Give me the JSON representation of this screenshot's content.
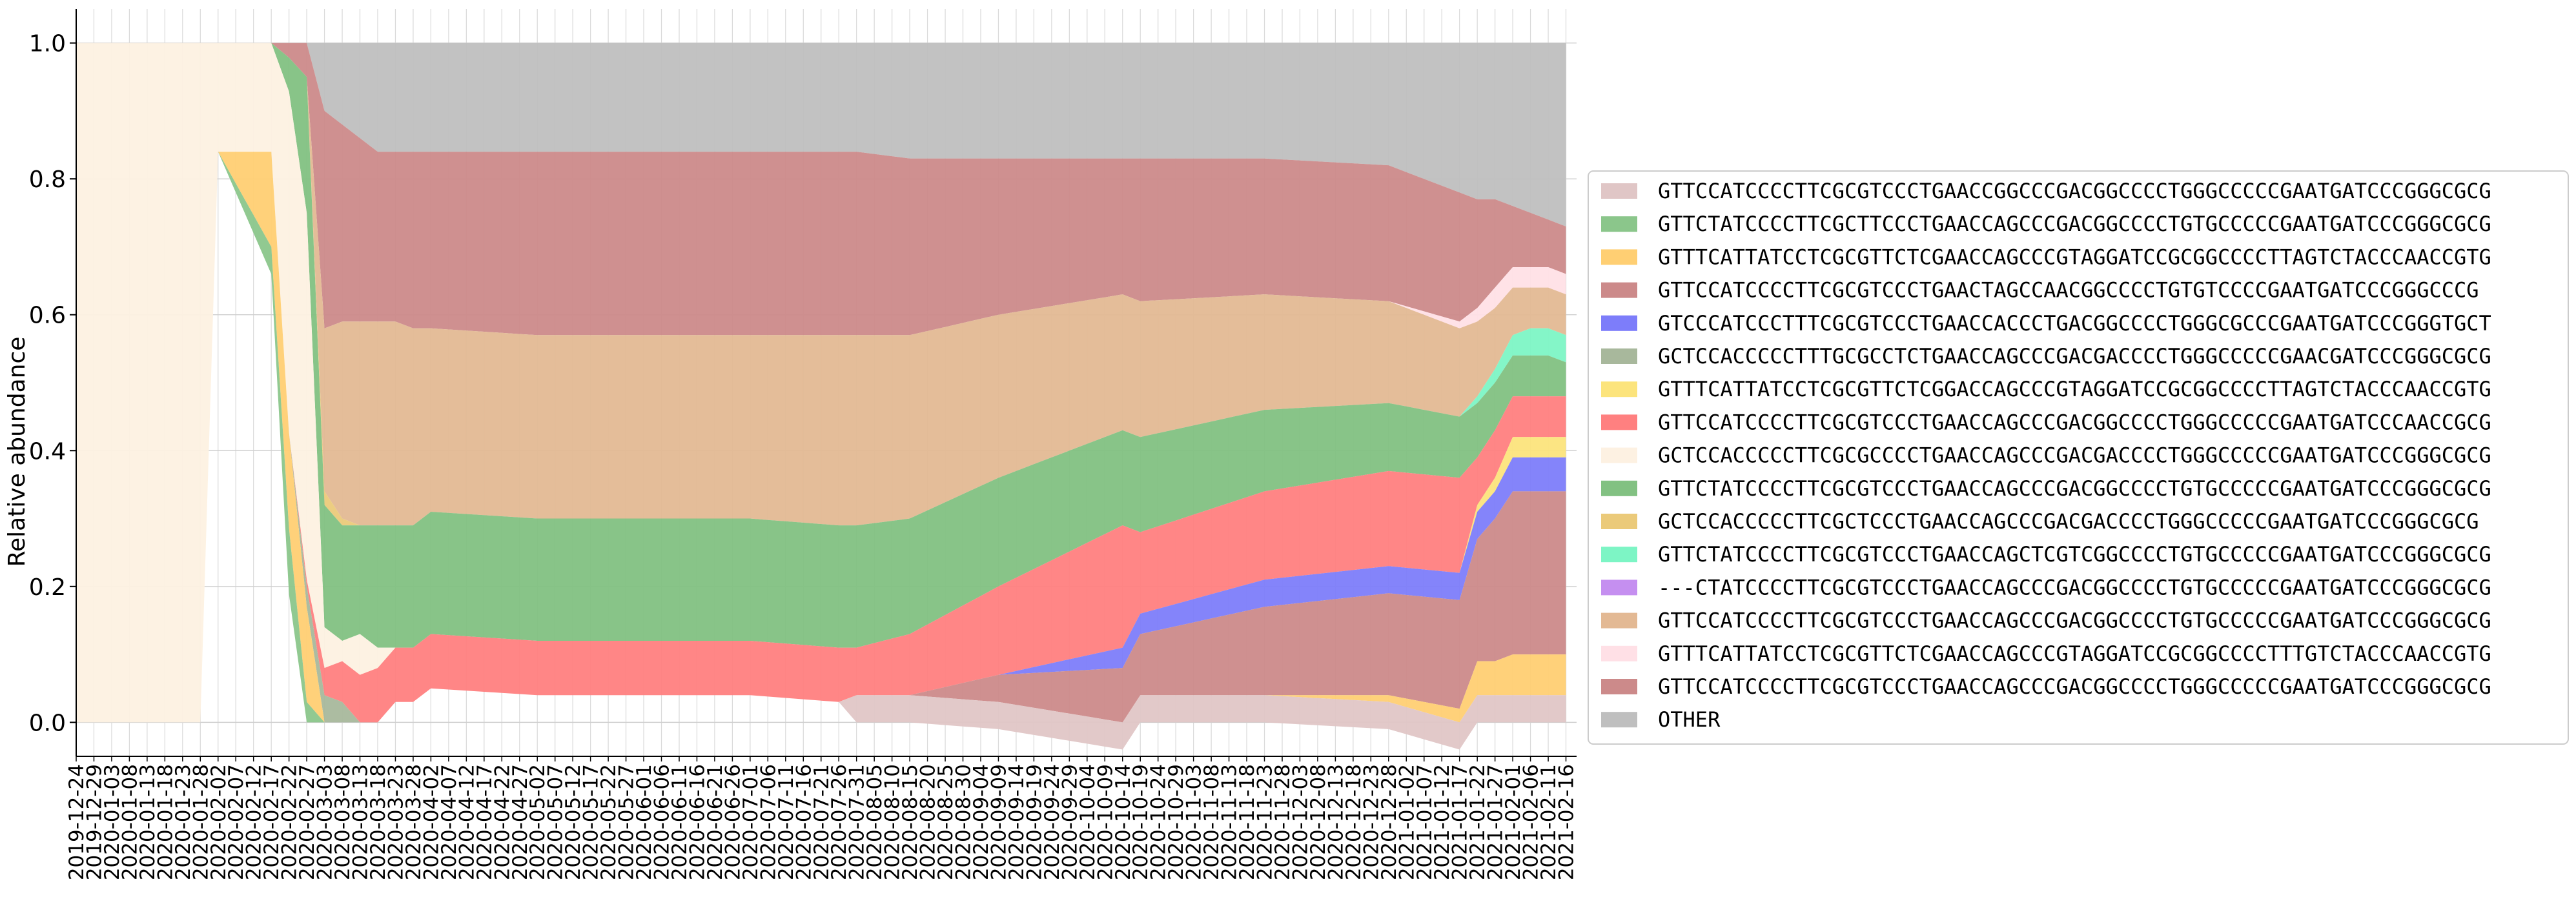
{
  "chart_data": {
    "type": "area",
    "stacked": true,
    "title": "",
    "xlabel": "",
    "ylabel": "Relative abundance",
    "ylim": [
      -0.05,
      1.05
    ],
    "yticks": [
      0.0,
      0.2,
      0.4,
      0.6,
      0.8,
      1.0
    ],
    "ytick_labels": [
      "0.0",
      "0.2",
      "0.4",
      "0.6",
      "0.8",
      "1.0"
    ],
    "x_start": "2019-12-24",
    "x_end": "2021-02-19",
    "x_step_days": 5,
    "grid": true,
    "legend_position": "right",
    "anchor_dates": [
      "2019-12-24",
      "2020-01-28",
      "2020-02-02",
      "2020-02-17",
      "2020-02-24",
      "2020-02-27",
      "2020-03-03",
      "2020-03-08",
      "2020-03-13",
      "2020-03-18",
      "2020-03-23",
      "2020-03-28",
      "2020-04-02",
      "2020-05-02",
      "2020-06-01",
      "2020-07-01",
      "2020-07-26",
      "2020-07-31",
      "2020-08-15",
      "2020-09-09",
      "2020-10-14",
      "2020-10-19",
      "2020-11-23",
      "2020-12-28",
      "2021-01-17",
      "2021-01-22",
      "2021-01-27",
      "2021-02-01",
      "2021-02-06",
      "2021-02-11",
      "2021-02-16",
      "2021-02-19"
    ],
    "series": [
      {
        "name": "OTHER",
        "color": "#bfbfbf",
        "values": [
          0,
          0,
          0,
          0,
          0,
          0,
          0.1,
          0.12,
          0.14,
          0.16,
          0.16,
          0.16,
          0.16,
          0.16,
          0.16,
          0.16,
          0.16,
          0.16,
          0.17,
          0.17,
          0.17,
          0.17,
          0.17,
          0.18,
          0.22,
          0.23,
          0.23,
          0.24,
          0.25,
          0.26,
          0.27,
          0.28
        ]
      },
      {
        "name": "GTTCCATCCCCTTCGCGTCCCTGAACCAGCCCGACGGCCCCTGGGCCCCCGAATGATCCCGGGCGCG",
        "color": "#cc8a8a",
        "values": [
          0,
          0,
          0,
          0,
          0.03,
          0.05,
          0.32,
          0.29,
          0.27,
          0.25,
          0.25,
          0.26,
          0.26,
          0.27,
          0.27,
          0.27,
          0.27,
          0.27,
          0.26,
          0.23,
          0.2,
          0.21,
          0.2,
          0.2,
          0.19,
          0.16,
          0.13,
          0.09,
          0.08,
          0.07,
          0.07,
          0.07
        ]
      },
      {
        "name": "GTTTCATTATCCTCGCGTTCTCGAACCAGCCCGTAGGATCCGCGGCCCCTTTGTCTACCCAACCGTG",
        "color": "#ffe0e6",
        "values": [
          0,
          0,
          0,
          0,
          0,
          0,
          0,
          0,
          0,
          0,
          0,
          0,
          0,
          0,
          0,
          0,
          0,
          0,
          0,
          0,
          0,
          0,
          0,
          0,
          0.01,
          0.02,
          0.03,
          0.03,
          0.03,
          0.03,
          0.03,
          0.03
        ]
      },
      {
        "name": "GTTCCATCCCCTTCGCGTCCCTGAACCAGCCCGACGGCCCCTGTGCCCCCGAATGATCCCGGGCGCG",
        "color": "#e3b994",
        "values": [
          0,
          0,
          0,
          0,
          0,
          0,
          0.24,
          0.29,
          0.3,
          0.3,
          0.3,
          0.29,
          0.27,
          0.27,
          0.27,
          0.27,
          0.28,
          0.28,
          0.27,
          0.24,
          0.2,
          0.2,
          0.17,
          0.15,
          0.13,
          0.11,
          0.09,
          0.07,
          0.06,
          0.06,
          0.06,
          0.06
        ]
      },
      {
        "name": "---CTATCCCCTTCGCGTCCCTGAACCAGCCCGACGGCCCCTGTGCCCCCGAATGATCCCGGGCGCG",
        "color": "#c58ff0",
        "values": [
          0,
          0,
          0,
          0,
          0,
          0,
          0,
          0,
          0,
          0,
          0,
          0,
          0,
          0,
          0,
          0,
          0,
          0,
          0,
          0,
          0,
          0,
          0,
          0,
          0,
          0,
          0,
          0,
          0,
          0,
          0,
          0
        ]
      },
      {
        "name": "GTTCTATCCCCTTCGCGTCCCTGAACCAGCTCGTCGGCCCCTGTGCCCCCGAATGATCCCGGGCGCG",
        "color": "#7df5c5",
        "values": [
          0,
          0,
          0,
          0,
          0,
          0,
          0,
          0,
          0,
          0,
          0,
          0,
          0,
          0,
          0,
          0,
          0,
          0,
          0,
          0,
          0,
          0,
          0,
          0,
          0,
          0.01,
          0.02,
          0.03,
          0.04,
          0.04,
          0.04,
          0.04
        ]
      },
      {
        "name": "GCTCCACCCCCTTCGCTCCCTGAACCAGCCCGACGACCCCTGGGCCCCCGAATGATCCCGGGCGCG",
        "color": "#ebca7a",
        "values": [
          0,
          0,
          0,
          0,
          0,
          0,
          0.02,
          0.01,
          0,
          0,
          0,
          0,
          0,
          0,
          0,
          0,
          0,
          0,
          0,
          0,
          0,
          0,
          0,
          0,
          0,
          0,
          0,
          0,
          0,
          0,
          0,
          0
        ]
      },
      {
        "name": "GTTCTATCCCCTTCGCGTCCCTGAACCAGCCCGACGGCCCCTGTGCCCCCGAATGATCCCGGGCGCG",
        "color": "#82c182",
        "values": [
          0,
          0,
          0,
          0,
          0.07,
          0.2,
          0.18,
          0.17,
          0.16,
          0.18,
          0.18,
          0.18,
          0.18,
          0.18,
          0.18,
          0.18,
          0.18,
          0.18,
          0.17,
          0.16,
          0.14,
          0.14,
          0.12,
          0.1,
          0.09,
          0.08,
          0.07,
          0.06,
          0.06,
          0.06,
          0.05,
          0.05
        ]
      },
      {
        "name": "GCTCCACCCCCTTCGCGCCCCTGAACCAGCCCGACGACCCCTGGGCCCCCGAATGATCCCGGGCGCG",
        "color": "#fdf1e2",
        "values": [
          1.0,
          1.0,
          0.16,
          0.16,
          0.64,
          0.54,
          0.06,
          0.03,
          0.06,
          0.03,
          0,
          0,
          0,
          0,
          0,
          0,
          0,
          0,
          0,
          0,
          0,
          0,
          0,
          0,
          0,
          0,
          0,
          0,
          0,
          0,
          0,
          0
        ]
      },
      {
        "name": "GTTCCATCCCCTTCGCGTCCCTGAACCAGCCCGACGGCCCCTGGGCCCCCGAATGATCCCAACCGCG",
        "color": "#ff8080",
        "values": [
          0,
          0,
          0,
          0,
          0,
          0.01,
          0.04,
          0.06,
          0.07,
          0.08,
          0.08,
          0.08,
          0.08,
          0.08,
          0.08,
          0.08,
          0.08,
          0.07,
          0.09,
          0.13,
          0.18,
          0.12,
          0.13,
          0.14,
          0.14,
          0.07,
          0.07,
          0.06,
          0.06,
          0.06,
          0.06,
          0.06
        ]
      },
      {
        "name": "GTTTCATTATCCTCGCGTTCTCGGACCAGCCCGTAGGATCCGCGGCCCCTTAGTCTACCCAACCGTG",
        "color": "#fce47c",
        "values": [
          0,
          0,
          0,
          0,
          0,
          0,
          0,
          0,
          0,
          0,
          0,
          0,
          0,
          0,
          0,
          0,
          0,
          0,
          0,
          0,
          0,
          0,
          0,
          0,
          0,
          0.01,
          0.02,
          0.03,
          0.03,
          0.03,
          0.03,
          0.03
        ]
      },
      {
        "name": "GCTCCACCCCCTTTGCGCCTCTGAACCAGCCCGACGACCCCTGGGCCCCCGAACGATCCCGGGCGCG",
        "color": "#a8b89c",
        "values": [
          0,
          0,
          0,
          0,
          0,
          0.03,
          0.04,
          0.03,
          0,
          0,
          0,
          0,
          0,
          0,
          0,
          0,
          0,
          0,
          0,
          0,
          0,
          0,
          0,
          0,
          0,
          0,
          0,
          0,
          0,
          0,
          0,
          0
        ]
      },
      {
        "name": "GTCCCATCCCTTTCGCGTCCCTGAACCACCCTGACGGCCCCTGGGCGCCCGAATGATCCCGGGTGCT",
        "color": "#7d7dfa",
        "values": [
          0,
          0,
          0,
          0,
          0,
          0,
          0,
          0,
          0,
          0,
          0,
          0,
          0,
          0,
          0,
          0,
          0,
          0,
          0,
          0,
          0.03,
          0.03,
          0.04,
          0.04,
          0.04,
          0.04,
          0.04,
          0.05,
          0.05,
          0.05,
          0.05,
          0.05
        ]
      },
      {
        "name": "GTTCCATCCCCTTCGCGTCCCTGAACTAGCCAACGGCCCCTGTGTCCCCGAATGATCCCGGGCCCG",
        "color": "#cc8a8a",
        "values": [
          0,
          0,
          0,
          0,
          0,
          0,
          0,
          0,
          0,
          0,
          0,
          0,
          0,
          0,
          0,
          0,
          0,
          0,
          0,
          0.04,
          0.08,
          0.09,
          0.13,
          0.15,
          0.16,
          0.18,
          0.21,
          0.24,
          0.24,
          0.24,
          0.24,
          0.24
        ]
      },
      {
        "name": "GTTTCATTATCCTCGCGTTCTCGAACCAGCCCGTAGGATCCGCGGCCCCTTAGTCTACCCAACCGTG",
        "color": "#ffcf73",
        "values": [
          0,
          0,
          0,
          0.14,
          0.14,
          0.14,
          0,
          0,
          0,
          0,
          0,
          0,
          0,
          0,
          0,
          0,
          0,
          0,
          0,
          0,
          0,
          0,
          0,
          0.01,
          0.02,
          0.05,
          0.05,
          0.06,
          0.06,
          0.06,
          0.06,
          0.06
        ]
      },
      {
        "name": "GTTCTATCCCCTTCGCTTCCCTGAACCAGCCCGACGGCCCCTGTGCCCCCGAATGATCCCGGGCGCG",
        "color": "#8bc68b",
        "values": [
          0,
          0,
          0,
          0.04,
          0.12,
          0.03,
          0,
          0,
          0,
          0,
          0,
          0,
          0,
          0,
          0,
          0,
          0,
          0,
          0,
          0,
          0,
          0,
          0,
          0,
          0,
          0,
          0,
          0,
          0,
          0,
          0,
          0
        ]
      },
      {
        "name": "GTTCCATCCCCTTCGCGTCCCTGAACCGGCCCGACGGCCCCTGGGCCCCCGAATGATCCCGGGCGCG",
        "color": "#e0c6c6",
        "values": [
          0,
          0,
          0,
          0,
          0,
          0,
          0,
          0,
          0,
          0,
          0,
          0,
          0,
          0,
          0,
          0,
          0,
          0.04,
          0.04,
          0.04,
          0.04,
          0.04,
          0.04,
          0.04,
          0.04,
          0.04,
          0.04,
          0.04,
          0.04,
          0.04,
          0.04,
          0.04
        ]
      }
    ],
    "legend_order": [
      16,
      15,
      14,
      13,
      12,
      11,
      10,
      9,
      8,
      7,
      6,
      5,
      4,
      3,
      2,
      1,
      0
    ]
  }
}
